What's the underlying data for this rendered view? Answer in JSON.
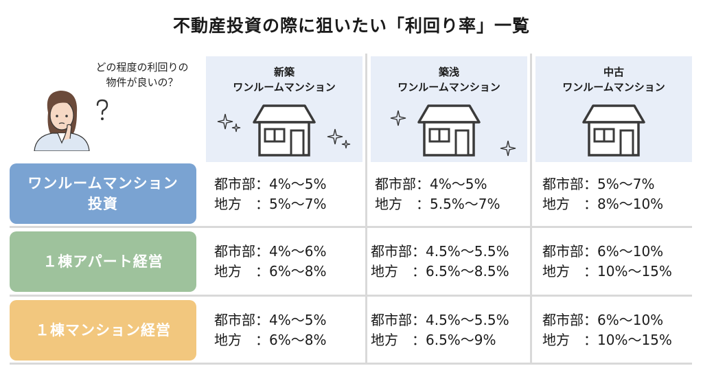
{
  "title": "不動産投資の際に狙いたい「利回り率」一覧",
  "question": {
    "line1": "どの程度の利回りの",
    "line2": "物件が良いの？"
  },
  "columns": [
    {
      "line1": "新築",
      "line2": "ワンルームマンション"
    },
    {
      "line1": "築浅",
      "line2": "ワンルームマンション"
    },
    {
      "line1": "中古",
      "line2": "ワンルームマンション"
    }
  ],
  "rows": [
    {
      "label_line1": "ワンルームマンション",
      "label_line2": "投資",
      "color": "#7aa3d2",
      "cells": [
        {
          "city": "都市部：4%〜5%",
          "rural": "地方　：5%〜7%"
        },
        {
          "city": "都市部：4%〜5%",
          "rural": "地方　：5.5%〜7%"
        },
        {
          "city": "都市部：5%〜7%",
          "rural": "地方　：8%〜10%"
        }
      ]
    },
    {
      "label_line1": "１棟アパート経営",
      "label_line2": "",
      "color": "#9ec29c",
      "cells": [
        {
          "city": "都市部：4%〜6%",
          "rural": "地方　：6%〜8%"
        },
        {
          "city": "都市部：4.5%〜5.5%",
          "rural": "地方　：6.5%〜8.5%"
        },
        {
          "city": "都市部：6%〜10%",
          "rural": "地方　：10%〜15%"
        }
      ]
    },
    {
      "label_line1": "１棟マンション経営",
      "label_line2": "",
      "color": "#f2c77e",
      "cells": [
        {
          "city": "都市部：4%〜5%",
          "rural": "地方　：6%〜8%"
        },
        {
          "city": "都市部：4.5%〜5.5%",
          "rural": "地方　：6.5%〜9%"
        },
        {
          "city": "都市部：6%〜10%",
          "rural": "地方　：10%〜15%"
        }
      ]
    }
  ]
}
